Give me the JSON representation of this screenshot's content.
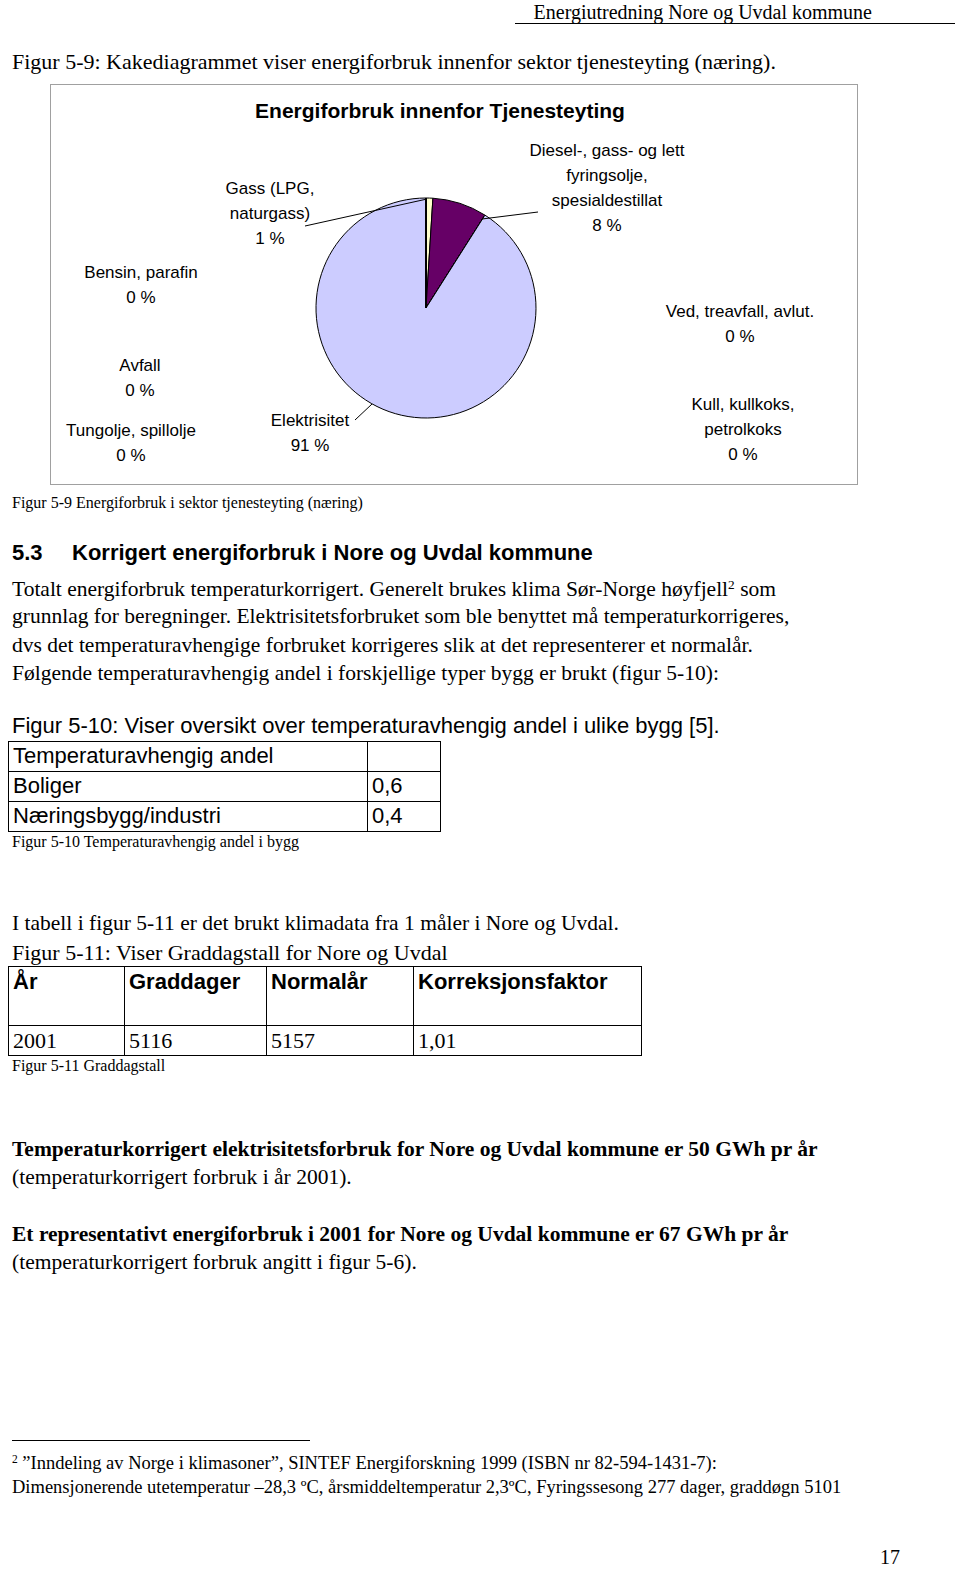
{
  "header": "Energiutredning Nore og Uvdal kommune",
  "figure_intro": "Figur 5-9: Kakediagrammet viser energiforbruk innenfor sektor tjenesteyting (næring).",
  "chart_data": {
    "type": "pie",
    "title": "Energiforbruk innenfor Tjenesteyting",
    "categories": [
      "Gass (LPG, naturgass)",
      "Diesel-, gass- og lett fyringsolje, spesialdestillat",
      "Ved, treavfall, avlut.",
      "Kull, kullkoks, petrolkoks",
      "Elektrisitet",
      "Tungolje, spillolje",
      "Avfall",
      "Bensin, parafin"
    ],
    "values": [
      1,
      8,
      0,
      0,
      91,
      0,
      0,
      0
    ],
    "value_labels": [
      "1 %",
      "8 %",
      "0 %",
      "0 %",
      "91 %",
      "0 %",
      "0 %",
      "0 %"
    ],
    "colors": [
      "#ffffcc",
      "#660066",
      "#ff8080",
      "#0066cc",
      "#ccccff",
      "#000080",
      "#ff00ff",
      "#ffff00"
    ],
    "data_labels": true
  },
  "figure_caption": "Figur 5-9 Energiforbruk i sektor tjenesteyting (næring)",
  "section": {
    "number": "5.3",
    "title": "Korrigert energiforbruk i Nore og Uvdal kommune"
  },
  "paragraph": [
    [
      {
        "t": "Totalt energiforbruk temperaturkorrigert. Generelt brukes klima Sør-Norge høyfjell"
      },
      {
        "t": "2",
        "sup": true
      },
      {
        "t": " som"
      }
    ],
    [
      {
        "t": "grunnlag for beregninger. Elektrisitetsforbruket som ble benyttet må temperaturkorrigeres,"
      }
    ],
    [
      {
        "t": "dvs det temperaturavhengige forbruket korrigeres slik at det representerer et normalår."
      }
    ],
    [
      {
        "t": "Følgende temperaturavhengig andel i forskjellige typer bygg er brukt (figur 5-10):"
      }
    ]
  ],
  "table1": {
    "title": "Figur 5-10: Viser oversikt over temperaturavhengig andel i ulike bygg [5].",
    "rows": [
      [
        "Temperaturavhengig andel"
      ],
      [
        "Boliger",
        "0,6"
      ],
      [
        "Næringsbygg/industri",
        "0,4"
      ]
    ],
    "caption": "Figur 5-10 Temperaturavhengig andel i bygg"
  },
  "table2_intro": "I tabell i figur 5-11 er det brukt klimadata fra 1 måler i Nore og Uvdal.",
  "table2": {
    "title": "Figur 5-11: Viser Graddagstall for Nore og Uvdal",
    "header": [
      "År",
      "Graddager",
      "Normalår",
      "Korreksjonsfaktor"
    ],
    "rows": [
      [
        "2001",
        "5116",
        "5157",
        "1,01"
      ]
    ],
    "caption": "Figur 5-11 Graddagstall"
  },
  "conclusions": [
    {
      "bold": "Temperaturkorrigert elektrisitetsforbruk for Nore og Uvdal kommune er 50 GWh pr år",
      "normal": "(temperaturkorrigert forbruk i år 2001)."
    },
    {
      "bold": "Et representativt energiforbruk i 2001 for Nore og Uvdal kommune er 67 GWh pr år",
      "normal": "(temperaturkorrigert forbruk angitt i figur 5-6)."
    }
  ],
  "footnote": [
    [
      {
        "t": "2",
        "sup": true
      },
      {
        "t": " ”Inndeling av Norge i klimasoner”, SINTEF Energiforskning 1999 (ISBN nr 82-594-1431-7):"
      }
    ],
    [
      {
        "t": "Dimensjonerende utetemperatur –28,3 ºC, årsmiddeltemperatur 2,3ºC, Fyringssesong 277 dager, graddøgn 5101"
      }
    ]
  ],
  "page_number": "17"
}
